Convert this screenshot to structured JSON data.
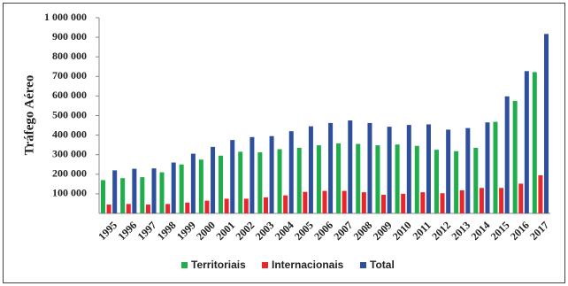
{
  "chart_data": {
    "type": "bar",
    "y_label": "Tráfego Aéreo",
    "categories": [
      "1995",
      "1996",
      "1997",
      "1998",
      "1999",
      "2000",
      "2001",
      "2002",
      "2003",
      "2004",
      "2005",
      "2006",
      "2007",
      "2008",
      "2009",
      "2010",
      "2011",
      "2012",
      "2013",
      "2014",
      "2015",
      "2016",
      "2017"
    ],
    "series": [
      {
        "name": "Territoriais",
        "color": "#1fae4b",
        "values": [
          170000,
          180000,
          185000,
          210000,
          250000,
          275000,
          295000,
          315000,
          312000,
          328000,
          335000,
          348000,
          358000,
          355000,
          348000,
          352000,
          345000,
          325000,
          318000,
          335000,
          468000,
          575000,
          722000
        ]
      },
      {
        "name": "Internacionais",
        "color": "#e8262b",
        "values": [
          45000,
          48000,
          45000,
          48000,
          55000,
          65000,
          75000,
          75000,
          82000,
          92000,
          110000,
          115000,
          115000,
          108000,
          95000,
          100000,
          108000,
          103000,
          118000,
          130000,
          130000,
          152000,
          195000
        ]
      },
      {
        "name": "Total",
        "color": "#2e4f9e",
        "values": [
          220000,
          228000,
          230000,
          260000,
          305000,
          340000,
          375000,
          390000,
          395000,
          420000,
          445000,
          462000,
          475000,
          462000,
          443000,
          452000,
          455000,
          428000,
          436000,
          465000,
          598000,
          727000,
          917000
        ]
      }
    ],
    "ylim": [
      0,
      1000000
    ],
    "yticks": [
      {
        "value": 100000,
        "label": "100 000"
      },
      {
        "value": 200000,
        "label": "200 000"
      },
      {
        "value": 300000,
        "label": "300 000"
      },
      {
        "value": 400000,
        "label": "400 000"
      },
      {
        "value": 500000,
        "label": "500 000"
      },
      {
        "value": 600000,
        "label": "600 000"
      },
      {
        "value": 700000,
        "label": "700 000"
      },
      {
        "value": 800000,
        "label": "800 000"
      },
      {
        "value": 900000,
        "label": "900 000"
      },
      {
        "value": 1000000,
        "label": "1 000 000"
      }
    ],
    "grid": false,
    "legend": "bottom"
  }
}
